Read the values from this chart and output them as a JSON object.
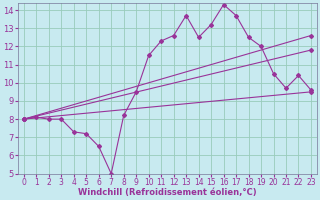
{
  "bg_color": "#c8eaf0",
  "line_color": "#993399",
  "grid_color": "#99ccbb",
  "xlabel": "Windchill (Refroidissement éolien,°C)",
  "xlim": [
    -0.5,
    23.5
  ],
  "ylim": [
    5,
    14.4
  ],
  "yticks": [
    5,
    6,
    7,
    8,
    9,
    10,
    11,
    12,
    13,
    14
  ],
  "xticks": [
    0,
    1,
    2,
    3,
    4,
    5,
    6,
    7,
    8,
    9,
    10,
    11,
    12,
    13,
    14,
    15,
    16,
    17,
    18,
    19,
    20,
    21,
    22,
    23
  ],
  "jagged_x": [
    0,
    1,
    2,
    3,
    4,
    5,
    6,
    7,
    8,
    9,
    10,
    11,
    12,
    13,
    14,
    15,
    16,
    17,
    18,
    19,
    20,
    21,
    22,
    23
  ],
  "jagged_y": [
    8.0,
    8.1,
    8.0,
    8.0,
    7.3,
    7.2,
    6.5,
    5.0,
    8.2,
    9.5,
    11.5,
    12.3,
    12.6,
    13.7,
    12.5,
    13.2,
    14.3,
    13.7,
    12.5,
    12.0,
    10.5,
    9.7,
    10.4,
    9.6
  ],
  "line1_x": [
    0,
    23
  ],
  "line1_y": [
    8.0,
    12.6
  ],
  "line2_x": [
    0,
    23
  ],
  "line2_y": [
    8.0,
    11.8
  ],
  "line3_x": [
    0,
    23
  ],
  "line3_y": [
    8.0,
    9.5
  ]
}
